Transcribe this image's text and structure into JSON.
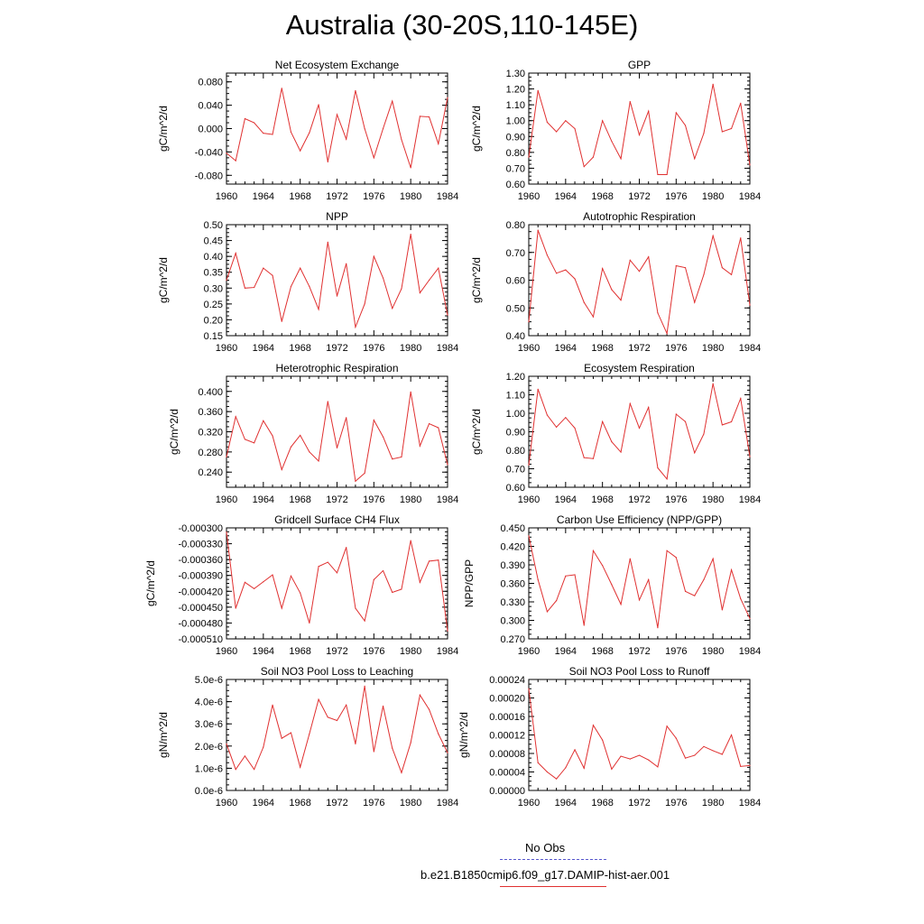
{
  "title": "Australia (30-20S,110-145E)",
  "legend": {
    "obs_label": "No Obs",
    "run_label": "b.e21.B1850cmip6.f09_g17.DAMIP-hist-aer.001",
    "obs_color": "#5555cc",
    "run_color": "#e03030"
  },
  "chart_data": [
    {
      "type": "line",
      "title": "Net Ecosystem Exchange",
      "ylabel": "gC/m^2/d",
      "ylim": [
        -0.095,
        0.095
      ],
      "yticks": [
        -0.08,
        -0.04,
        0.0,
        0.04,
        0.08
      ],
      "yticklabels": [
        "-0.080",
        "-0.040",
        "0.000",
        "0.040",
        "0.080"
      ],
      "xlim": [
        1960,
        1984
      ],
      "xticks": [
        1960,
        1964,
        1968,
        1972,
        1976,
        1980,
        1984
      ],
      "xticklabels": [
        "1960",
        "1964",
        "1968",
        "1972",
        "1976",
        "1980",
        "1984"
      ],
      "x": [
        1960,
        1961,
        1962,
        1963,
        1964,
        1965,
        1966,
        1967,
        1968,
        1969,
        1970,
        1971,
        1972,
        1973,
        1974,
        1975,
        1976,
        1977,
        1978,
        1979,
        1980,
        1981,
        1982,
        1983,
        1984
      ],
      "series": [
        {
          "values": [
            -0.042,
            -0.055,
            0.017,
            0.01,
            -0.008,
            -0.01,
            0.069,
            -0.006,
            -0.038,
            -0.007,
            0.041,
            -0.057,
            0.024,
            -0.018,
            0.065,
            0.0,
            -0.05,
            0.0,
            0.047,
            -0.019,
            -0.067,
            0.021,
            0.02,
            -0.026,
            0.053
          ]
        }
      ]
    },
    {
      "type": "line",
      "title": "GPP",
      "ylabel": "gC/m^2/d",
      "ylim": [
        0.6,
        1.3
      ],
      "yticks": [
        0.6,
        0.7,
        0.8,
        0.9,
        1.0,
        1.1,
        1.2,
        1.3
      ],
      "yticklabels": [
        "0.60",
        "0.70",
        "0.80",
        "0.90",
        "1.00",
        "1.10",
        "1.20",
        "1.30"
      ],
      "xlim": [
        1960,
        1984
      ],
      "xticks": [
        1960,
        1964,
        1968,
        1972,
        1976,
        1980,
        1984
      ],
      "xticklabels": [
        "1960",
        "1964",
        "1968",
        "1972",
        "1976",
        "1980",
        "1984"
      ],
      "x": [
        1960,
        1961,
        1962,
        1963,
        1964,
        1965,
        1966,
        1967,
        1968,
        1969,
        1970,
        1971,
        1972,
        1973,
        1974,
        1975,
        1976,
        1977,
        1978,
        1979,
        1980,
        1981,
        1982,
        1983,
        1984
      ],
      "series": [
        {
          "values": [
            0.77,
            1.19,
            0.99,
            0.93,
            1.0,
            0.95,
            0.71,
            0.77,
            1.0,
            0.87,
            0.76,
            1.12,
            0.91,
            1.06,
            0.66,
            0.66,
            1.05,
            0.97,
            0.76,
            0.92,
            1.23,
            0.93,
            0.95,
            1.11,
            0.72
          ]
        }
      ]
    },
    {
      "type": "line",
      "title": "NPP",
      "ylabel": "gC/m^2/d",
      "ylim": [
        0.15,
        0.5
      ],
      "yticks": [
        0.15,
        0.2,
        0.25,
        0.3,
        0.35,
        0.4,
        0.45,
        0.5
      ],
      "yticklabels": [
        "0.15",
        "0.20",
        "0.25",
        "0.30",
        "0.35",
        "0.40",
        "0.45",
        "0.50"
      ],
      "xlim": [
        1960,
        1984
      ],
      "xticks": [
        1960,
        1964,
        1968,
        1972,
        1976,
        1980,
        1984
      ],
      "xticklabels": [
        "1960",
        "1964",
        "1968",
        "1972",
        "1976",
        "1980",
        "1984"
      ],
      "x": [
        1960,
        1961,
        1962,
        1963,
        1964,
        1965,
        1966,
        1967,
        1968,
        1969,
        1970,
        1971,
        1972,
        1973,
        1974,
        1975,
        1976,
        1977,
        1978,
        1979,
        1980,
        1981,
        1982,
        1983,
        1984
      ],
      "series": [
        {
          "values": [
            0.325,
            0.41,
            0.3,
            0.302,
            0.363,
            0.34,
            0.195,
            0.305,
            0.363,
            0.305,
            0.233,
            0.445,
            0.275,
            0.377,
            0.177,
            0.25,
            0.4,
            0.332,
            0.236,
            0.298,
            0.47,
            0.285,
            0.325,
            0.363,
            0.215
          ]
        }
      ]
    },
    {
      "type": "line",
      "title": "Autotrophic Respiration",
      "ylabel": "gC/m^2/d",
      "ylim": [
        0.4,
        0.8
      ],
      "yticks": [
        0.4,
        0.5,
        0.6,
        0.7,
        0.8
      ],
      "yticklabels": [
        "0.40",
        "0.50",
        "0.60",
        "0.70",
        "0.80"
      ],
      "xlim": [
        1960,
        1984
      ],
      "xticks": [
        1960,
        1964,
        1968,
        1972,
        1976,
        1980,
        1984
      ],
      "xticklabels": [
        "1960",
        "1964",
        "1968",
        "1972",
        "1976",
        "1980",
        "1984"
      ],
      "x": [
        1960,
        1961,
        1962,
        1963,
        1964,
        1965,
        1966,
        1967,
        1968,
        1969,
        1970,
        1971,
        1972,
        1973,
        1974,
        1975,
        1976,
        1977,
        1978,
        1979,
        1980,
        1981,
        1982,
        1983,
        1984
      ],
      "series": [
        {
          "values": [
            0.45,
            0.78,
            0.69,
            0.625,
            0.637,
            0.605,
            0.52,
            0.468,
            0.642,
            0.566,
            0.528,
            0.672,
            0.632,
            0.684,
            0.482,
            0.408,
            0.652,
            0.645,
            0.52,
            0.62,
            0.76,
            0.645,
            0.62,
            0.752,
            0.51
          ]
        }
      ]
    },
    {
      "type": "line",
      "title": "Heterotrophic Respiration",
      "ylabel": "gC/m^2/d",
      "ylim": [
        0.21,
        0.43
      ],
      "yticks": [
        0.24,
        0.28,
        0.32,
        0.36,
        0.4
      ],
      "yticklabels": [
        "0.240",
        "0.280",
        "0.320",
        "0.360",
        "0.400"
      ],
      "xlim": [
        1960,
        1984
      ],
      "xticks": [
        1960,
        1964,
        1968,
        1972,
        1976,
        1980,
        1984
      ],
      "xticklabels": [
        "1960",
        "1964",
        "1968",
        "1972",
        "1976",
        "1980",
        "1984"
      ],
      "x": [
        1960,
        1961,
        1962,
        1963,
        1964,
        1965,
        1966,
        1967,
        1968,
        1969,
        1970,
        1971,
        1972,
        1973,
        1974,
        1975,
        1976,
        1977,
        1978,
        1979,
        1980,
        1981,
        1982,
        1983,
        1984
      ],
      "series": [
        {
          "values": [
            0.27,
            0.35,
            0.305,
            0.298,
            0.342,
            0.312,
            0.245,
            0.29,
            0.313,
            0.28,
            0.262,
            0.38,
            0.288,
            0.348,
            0.222,
            0.238,
            0.343,
            0.31,
            0.266,
            0.27,
            0.399,
            0.292,
            0.336,
            0.328,
            0.255
          ]
        }
      ]
    },
    {
      "type": "line",
      "title": "Ecosystem Respiration",
      "ylabel": "gC/m^2/d",
      "ylim": [
        0.6,
        1.2
      ],
      "yticks": [
        0.6,
        0.7,
        0.8,
        0.9,
        1.0,
        1.1,
        1.2
      ],
      "yticklabels": [
        "0.60",
        "0.70",
        "0.80",
        "0.90",
        "1.00",
        "1.10",
        "1.20"
      ],
      "xlim": [
        1960,
        1984
      ],
      "xticks": [
        1960,
        1964,
        1968,
        1972,
        1976,
        1980,
        1984
      ],
      "xticklabels": [
        "1960",
        "1964",
        "1968",
        "1972",
        "1976",
        "1980",
        "1984"
      ],
      "x": [
        1960,
        1961,
        1962,
        1963,
        1964,
        1965,
        1966,
        1967,
        1968,
        1969,
        1970,
        1971,
        1972,
        1973,
        1974,
        1975,
        1976,
        1977,
        1978,
        1979,
        1980,
        1981,
        1982,
        1983,
        1984
      ],
      "series": [
        {
          "values": [
            0.72,
            1.13,
            0.99,
            0.925,
            0.977,
            0.92,
            0.76,
            0.755,
            0.955,
            0.846,
            0.79,
            1.052,
            0.92,
            1.032,
            0.705,
            0.645,
            0.995,
            0.955,
            0.786,
            0.888,
            1.16,
            0.937,
            0.954,
            1.08,
            0.765
          ]
        }
      ]
    },
    {
      "type": "line",
      "title": "Gridcell Surface CH4 Flux",
      "ylabel": "gC/m^2/d",
      "ylim": [
        -0.00051,
        -0.0003
      ],
      "yticks": [
        -0.00051,
        -0.00048,
        -0.00045,
        -0.00042,
        -0.00039,
        -0.00036,
        -0.00033,
        -0.0003
      ],
      "yticklabels": [
        "-0.000510",
        "-0.000480",
        "-0.000450",
        "-0.000420",
        "-0.000390",
        "-0.000360",
        "-0.000330",
        "-0.000300"
      ],
      "xlim": [
        1960,
        1984
      ],
      "xticks": [
        1960,
        1964,
        1968,
        1972,
        1976,
        1980,
        1984
      ],
      "xticklabels": [
        "1960",
        "1964",
        "1968",
        "1972",
        "1976",
        "1980",
        "1984"
      ],
      "x": [
        1960,
        1961,
        1962,
        1963,
        1964,
        1965,
        1966,
        1967,
        1968,
        1969,
        1970,
        1971,
        1972,
        1973,
        1974,
        1975,
        1976,
        1977,
        1978,
        1979,
        1980,
        1981,
        1982,
        1983,
        1984
      ],
      "series": [
        {
          "values": [
            -0.000308,
            -0.000452,
            -0.000403,
            -0.000415,
            -0.000402,
            -0.000389,
            -0.000452,
            -0.000391,
            -0.000423,
            -0.00048,
            -0.000373,
            -0.000365,
            -0.000385,
            -0.000337,
            -0.000452,
            -0.000476,
            -0.000398,
            -0.000381,
            -0.000422,
            -0.000416,
            -0.000324,
            -0.000403,
            -0.000363,
            -0.000361,
            -0.000495
          ]
        }
      ]
    },
    {
      "type": "line",
      "title": "Carbon Use Efficiency (NPP/GPP)",
      "ylabel": "NPP/GPP",
      "ylim": [
        0.27,
        0.45
      ],
      "yticks": [
        0.27,
        0.3,
        0.33,
        0.36,
        0.39,
        0.42,
        0.45
      ],
      "yticklabels": [
        "0.270",
        "0.300",
        "0.330",
        "0.360",
        "0.390",
        "0.420",
        "0.450"
      ],
      "xlim": [
        1960,
        1984
      ],
      "xticks": [
        1960,
        1964,
        1968,
        1972,
        1976,
        1980,
        1984
      ],
      "xticklabels": [
        "1960",
        "1964",
        "1968",
        "1972",
        "1976",
        "1980",
        "1984"
      ],
      "x": [
        1960,
        1961,
        1962,
        1963,
        1964,
        1965,
        1966,
        1967,
        1968,
        1969,
        1970,
        1971,
        1972,
        1973,
        1974,
        1975,
        1976,
        1977,
        1978,
        1979,
        1980,
        1981,
        1982,
        1983,
        1984
      ],
      "series": [
        {
          "values": [
            0.437,
            0.366,
            0.314,
            0.332,
            0.372,
            0.374,
            0.292,
            0.413,
            0.389,
            0.358,
            0.326,
            0.4,
            0.333,
            0.366,
            0.288,
            0.413,
            0.402,
            0.347,
            0.34,
            0.366,
            0.4,
            0.317,
            0.382,
            0.335,
            0.303
          ]
        }
      ]
    },
    {
      "type": "line",
      "title": "Soil NO3 Pool Loss to Leaching",
      "ylabel": "gN/m^2/d",
      "ylim": [
        0.0,
        5e-06
      ],
      "yticks": [
        0.0,
        1e-06,
        2e-06,
        3e-06,
        4e-06,
        5e-06
      ],
      "yticklabels": [
        "0.0e-6",
        "1.0e-6",
        "2.0e-6",
        "3.0e-6",
        "4.0e-6",
        "5.0e-6"
      ],
      "xlim": [
        1960,
        1984
      ],
      "xticks": [
        1960,
        1964,
        1968,
        1972,
        1976,
        1980,
        1984
      ],
      "xticklabels": [
        "1960",
        "1964",
        "1968",
        "1972",
        "1976",
        "1980",
        "1984"
      ],
      "x": [
        1960,
        1961,
        1962,
        1963,
        1964,
        1965,
        1966,
        1967,
        1968,
        1969,
        1970,
        1971,
        1972,
        1973,
        1974,
        1975,
        1976,
        1977,
        1978,
        1979,
        1980,
        1981,
        1982,
        1983,
        1984
      ],
      "series": [
        {
          "values": [
            2.1e-06,
            9.5e-07,
            1.55e-06,
            9.5e-07,
            1.95e-06,
            3.85e-06,
            2.35e-06,
            2.6e-06,
            1.05e-06,
            2.55e-06,
            4.1e-06,
            3.3e-06,
            3.15e-06,
            3.85e-06,
            2.1e-06,
            4.7e-06,
            1.75e-06,
            3.8e-06,
            1.9e-06,
            8e-07,
            2.15e-06,
            4.3e-06,
            3.65e-06,
            2.55e-06,
            1.7e-06
          ]
        }
      ]
    },
    {
      "type": "line",
      "title": "Soil NO3 Pool Loss to Runoff",
      "ylabel": "gN/m^2/d",
      "ylim": [
        0.0,
        0.00024
      ],
      "yticks": [
        0.0,
        4e-05,
        8e-05,
        0.00012,
        0.00016,
        0.0002,
        0.00024
      ],
      "yticklabels": [
        "0.00000",
        "0.00004",
        "0.00008",
        "0.00012",
        "0.00016",
        "0.00020",
        "0.00024"
      ],
      "xlim": [
        1960,
        1984
      ],
      "xticks": [
        1960,
        1964,
        1968,
        1972,
        1976,
        1980,
        1984
      ],
      "xticklabels": [
        "1960",
        "1964",
        "1968",
        "1972",
        "1976",
        "1980",
        "1984"
      ],
      "x": [
        1960,
        1961,
        1962,
        1963,
        1964,
        1965,
        1966,
        1967,
        1968,
        1969,
        1970,
        1971,
        1972,
        1973,
        1974,
        1975,
        1976,
        1977,
        1978,
        1979,
        1980,
        1981,
        1982,
        1983,
        1984
      ],
      "series": [
        {
          "values": [
            0.00022,
            6e-05,
            4e-05,
            2.5e-05,
            4.9e-05,
            8.8e-05,
            4.8e-05,
            0.000141,
            0.000109,
            4.6e-05,
            7.4e-05,
            6.8e-05,
            7.6e-05,
            6.6e-05,
            5.1e-05,
            0.000139,
            0.000113,
            7e-05,
            7.6e-05,
            9.5e-05,
            8.6e-05,
            7.8e-05,
            0.00012,
            5.2e-05,
            5.4e-05
          ]
        }
      ]
    }
  ]
}
